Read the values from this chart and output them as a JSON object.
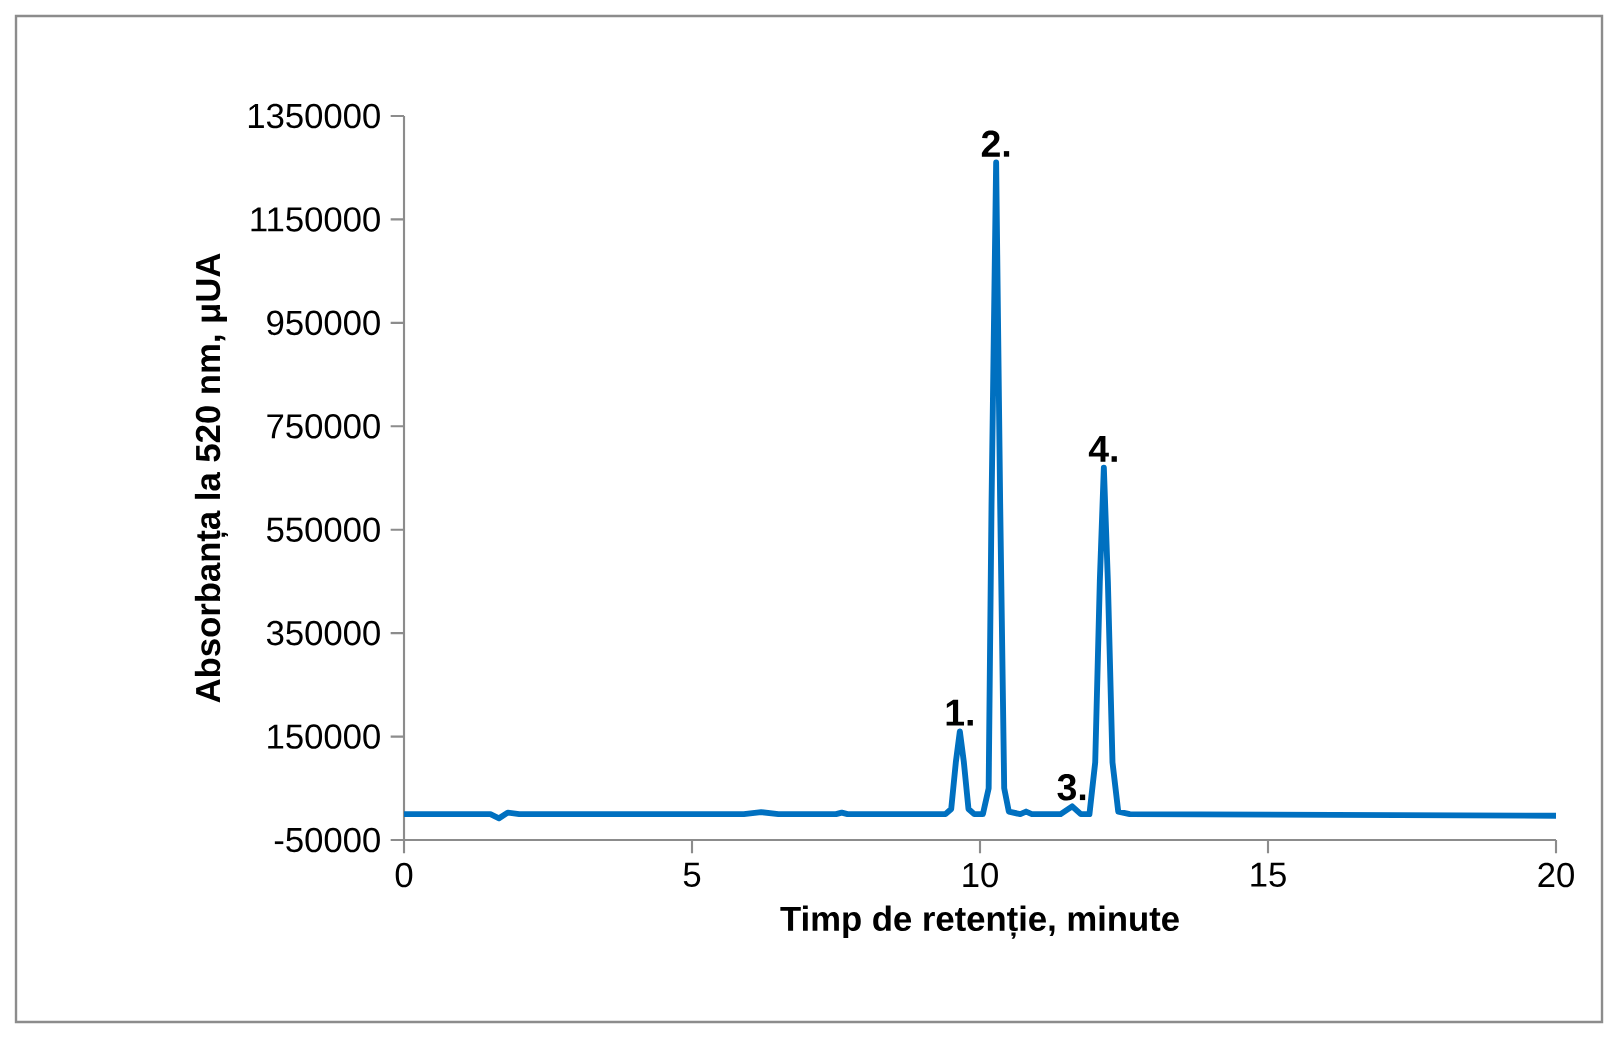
{
  "chart_data": {
    "type": "line",
    "xlabel": "Timp de retenție, minute",
    "ylabel": "Absorbanța la 520 nm, μUA",
    "xlim": [
      0,
      20
    ],
    "ylim": [
      -50000,
      1350000
    ],
    "xticks": [
      0,
      5,
      10,
      15,
      20
    ],
    "yticks": [
      -50000,
      150000,
      350000,
      550000,
      750000,
      950000,
      1150000,
      1350000
    ],
    "series": [
      {
        "color": "#0070c0",
        "x": [
          0,
          1.5,
          1.65,
          1.8,
          2.0,
          5.9,
          6.2,
          6.5,
          7.5,
          7.6,
          7.7,
          9.4,
          9.5,
          9.58,
          9.65,
          9.72,
          9.8,
          9.9,
          10.05,
          10.15,
          10.2,
          10.28,
          10.35,
          10.42,
          10.5,
          10.7,
          10.8,
          10.9,
          11.4,
          11.6,
          11.75,
          11.9,
          12.0,
          12.08,
          12.15,
          12.22,
          12.3,
          12.4,
          12.6,
          20
        ],
        "values": [
          0,
          0,
          -8000,
          3000,
          0,
          0,
          4000,
          0,
          0,
          3000,
          0,
          0,
          10000,
          100000,
          160000,
          100000,
          10000,
          0,
          0,
          50000,
          600000,
          1260000,
          600000,
          50000,
          5000,
          0,
          5000,
          0,
          0,
          15000,
          0,
          0,
          100000,
          450000,
          670000,
          450000,
          100000,
          5000,
          0,
          -3000
        ]
      }
    ],
    "annotations": [
      {
        "text": "1.",
        "x": 9.65,
        "y": 160000
      },
      {
        "text": "2.",
        "x": 10.28,
        "y": 1260000
      },
      {
        "text": "3.",
        "x": 11.6,
        "y": 15000
      },
      {
        "text": "4.",
        "x": 12.15,
        "y": 670000
      }
    ]
  }
}
